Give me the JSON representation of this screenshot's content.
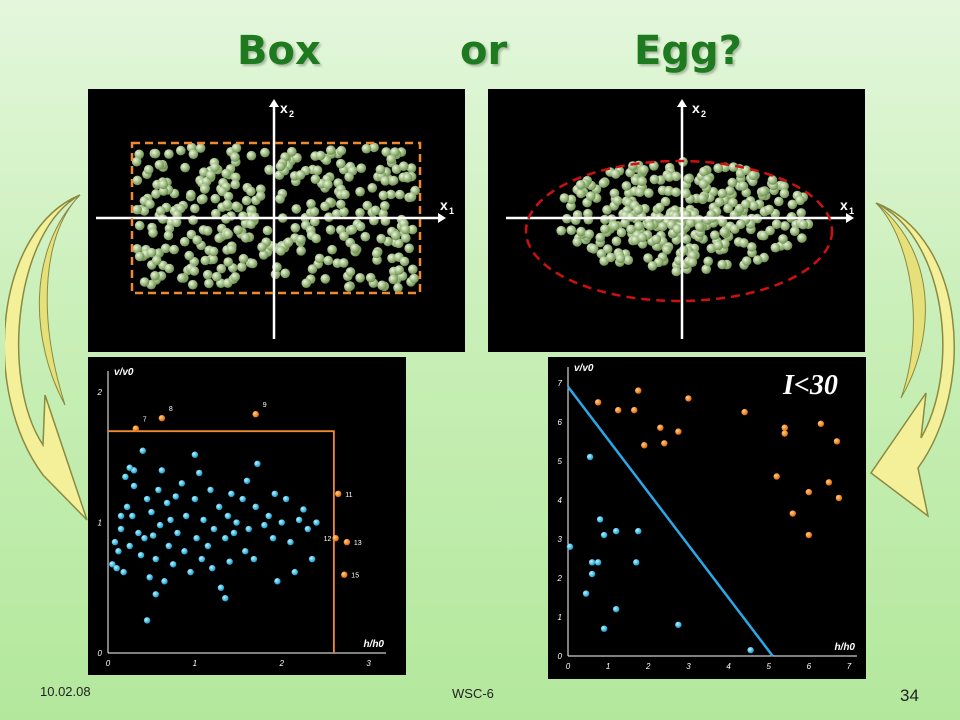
{
  "title": {
    "word1": "Box",
    "word2": "or",
    "word3": "Egg?"
  },
  "colors": {
    "title": "#1e7a1e",
    "box_border": "#f08a30",
    "ellipse_border": "#cc1111",
    "particle": "#a9c98a",
    "dot_blue": "#29c4ee",
    "dot_orange": "#f07a10",
    "box_line": "#f08a30",
    "line_blue": "#2aa8e8",
    "arrow_fill": "#f4f09a"
  },
  "panel_box": {
    "xaxis_label": "x",
    "xaxis_sub": "1",
    "yaxis_label": "x",
    "yaxis_sub": "2"
  },
  "panel_egg": {
    "xaxis_label": "x",
    "xaxis_sub": "1",
    "yaxis_label": "x",
    "yaxis_sub": "2"
  },
  "chart_data": [
    {
      "type": "scatter",
      "xlabel": "h/h0",
      "ylabel": "v/v0",
      "xlim": [
        0,
        3.2
      ],
      "ylim": [
        0,
        2.1
      ],
      "xticks": [
        "0",
        "1",
        "2",
        "3"
      ],
      "yticks": [
        "0",
        "1",
        "2"
      ],
      "box": {
        "x_max": 2.6,
        "y_max": 1.7
      },
      "series": [
        {
          "points": [
            [
              0.05,
              0.68
            ],
            [
              0.1,
              0.65
            ],
            [
              0.08,
              0.85
            ],
            [
              0.12,
              0.78
            ],
            [
              0.15,
              0.95
            ],
            [
              0.2,
              1.35
            ],
            [
              0.22,
              1.12
            ],
            [
              0.18,
              0.62
            ],
            [
              0.25,
              0.82
            ],
            [
              0.3,
              1.28
            ],
            [
              0.28,
              1.05
            ],
            [
              0.35,
              0.92
            ],
            [
              0.38,
              0.75
            ],
            [
              0.4,
              1.55
            ],
            [
              0.42,
              0.88
            ],
            [
              0.45,
              1.18
            ],
            [
              0.48,
              0.58
            ],
            [
              0.5,
              1.08
            ],
            [
              0.52,
              0.9
            ],
            [
              0.55,
              0.72
            ],
            [
              0.58,
              1.25
            ],
            [
              0.6,
              0.98
            ],
            [
              0.62,
              1.4
            ],
            [
              0.65,
              0.55
            ],
            [
              0.68,
              1.15
            ],
            [
              0.7,
              0.82
            ],
            [
              0.72,
              1.02
            ],
            [
              0.75,
              0.68
            ],
            [
              0.78,
              1.2
            ],
            [
              0.8,
              0.92
            ],
            [
              0.85,
              1.3
            ],
            [
              0.88,
              0.78
            ],
            [
              0.9,
              1.05
            ],
            [
              0.95,
              0.62
            ],
            [
              1.0,
              1.18
            ],
            [
              1.02,
              0.88
            ],
            [
              1.05,
              1.38
            ],
            [
              1.08,
              0.72
            ],
            [
              1.1,
              1.02
            ],
            [
              1.15,
              0.82
            ],
            [
              1.18,
              1.25
            ],
            [
              1.2,
              0.65
            ],
            [
              1.22,
              0.95
            ],
            [
              1.28,
              1.12
            ],
            [
              1.3,
              0.5
            ],
            [
              1.35,
              0.88
            ],
            [
              1.38,
              1.05
            ],
            [
              1.4,
              0.7
            ],
            [
              1.42,
              1.22
            ],
            [
              1.45,
              0.92
            ],
            [
              1.48,
              1.0
            ],
            [
              1.55,
              1.18
            ],
            [
              1.58,
              0.78
            ],
            [
              1.6,
              1.32
            ],
            [
              1.62,
              0.95
            ],
            [
              1.68,
              0.72
            ],
            [
              1.7,
              1.12
            ],
            [
              1.72,
              1.45
            ],
            [
              1.8,
              0.98
            ],
            [
              1.85,
              1.05
            ],
            [
              1.9,
              0.88
            ],
            [
              1.92,
              1.22
            ],
            [
              1.95,
              0.55
            ],
            [
              2.0,
              1.0
            ],
            [
              2.05,
              1.18
            ],
            [
              2.1,
              0.85
            ],
            [
              2.15,
              0.62
            ],
            [
              2.2,
              1.02
            ],
            [
              2.25,
              1.1
            ],
            [
              2.3,
              0.95
            ],
            [
              2.35,
              0.72
            ],
            [
              2.4,
              1.0
            ],
            [
              0.3,
              1.4
            ],
            [
              0.25,
              1.42
            ],
            [
              0.45,
              0.25
            ],
            [
              1.35,
              0.42
            ],
            [
              0.55,
              0.45
            ],
            [
              1.0,
              1.52
            ],
            [
              0.15,
              1.05
            ]
          ]
        },
        {
          "points": [
            [
              0.32,
              1.72
            ],
            [
              0.62,
              1.8
            ],
            [
              1.7,
              1.83
            ],
            [
              2.65,
              1.22
            ],
            [
              2.62,
              0.88
            ],
            [
              2.75,
              0.85
            ],
            [
              2.72,
              0.6
            ]
          ],
          "labels": [
            "7",
            "8",
            "9",
            "11",
            "12",
            "13",
            "15"
          ]
        }
      ]
    },
    {
      "type": "scatter",
      "xlabel": "h/h0",
      "ylabel": "v/v0",
      "xlim": [
        0,
        7.2
      ],
      "ylim": [
        0,
        7.2
      ],
      "xticks": [
        "0",
        "1",
        "2",
        "3",
        "4",
        "5",
        "6",
        "7"
      ],
      "yticks": [
        "0",
        "1",
        "2",
        "3",
        "4",
        "5",
        "6",
        "7"
      ],
      "line": {
        "from": [
          0,
          6.9
        ],
        "to": [
          5.1,
          0
        ]
      },
      "annotation": "I<30",
      "series": [
        {
          "points": [
            [
              0.05,
              2.8
            ],
            [
              0.45,
              1.6
            ],
            [
              0.75,
              2.4
            ],
            [
              0.6,
              2.1
            ],
            [
              0.8,
              3.5
            ],
            [
              0.6,
              2.4
            ],
            [
              0.55,
              5.1
            ],
            [
              0.9,
              3.1
            ],
            [
              0.9,
              0.7
            ],
            [
              1.2,
              1.2
            ],
            [
              1.2,
              3.2
            ],
            [
              1.7,
              2.4
            ],
            [
              1.75,
              3.2
            ],
            [
              2.75,
              0.8
            ],
            [
              4.55,
              0.15
            ]
          ]
        },
        {
          "points": [
            [
              0.75,
              6.5
            ],
            [
              1.25,
              6.3
            ],
            [
              1.65,
              6.3
            ],
            [
              1.75,
              6.8
            ],
            [
              1.9,
              5.4
            ],
            [
              2.3,
              5.85
            ],
            [
              2.4,
              5.45
            ],
            [
              2.75,
              5.75
            ],
            [
              3.0,
              6.6
            ],
            [
              4.4,
              6.25
            ],
            [
              5.2,
              4.6
            ],
            [
              5.4,
              5.85
            ],
            [
              5.4,
              5.7
            ],
            [
              5.6,
              3.65
            ],
            [
              6.0,
              4.2
            ],
            [
              6.0,
              3.1
            ],
            [
              6.3,
              5.95
            ],
            [
              6.5,
              4.45
            ],
            [
              6.7,
              5.5
            ],
            [
              6.75,
              4.05
            ]
          ]
        }
      ]
    }
  ],
  "footer": {
    "date": "10.02.08",
    "center": "WSC-6",
    "page": "34"
  }
}
